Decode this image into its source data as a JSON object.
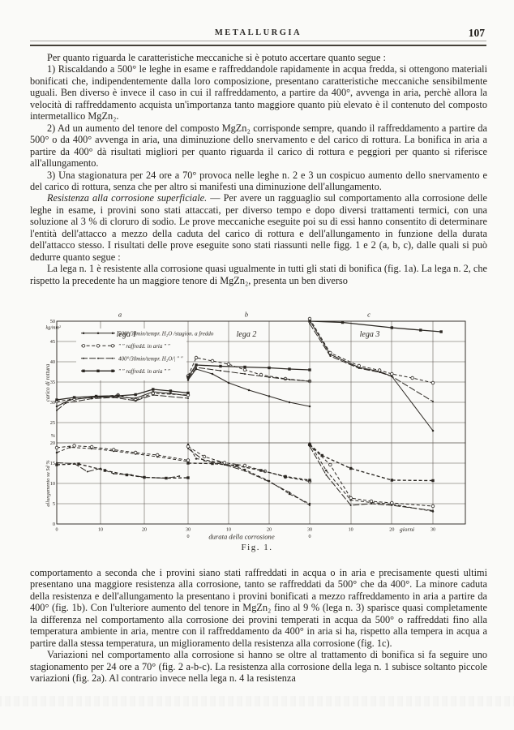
{
  "page": {
    "background": "#fafaf8",
    "ink": "#2b2722"
  },
  "header": {
    "journal": "METALLURGIA",
    "page_number": "107"
  },
  "paragraphs": {
    "p1": "Per quanto riguarda le caratteristiche meccaniche si è potuto accertare quanto segue :",
    "p2": "1) Riscaldando a 500° le leghe in esame e raffreddandole rapidamente in acqua fredda, si ottengono materiali bonificati che, indipendentemente dalla loro composizione, presentano caratteristiche meccaniche sensibilmente uguali. Ben diverso è invece il caso in cui il raffreddamento, a partire da 400°, avvenga in aria, perchè allora la velocità di raffreddamento acquista un'importanza tanto maggiore quanto più elevato è il contenuto del composto intermetallico MgZn₂.",
    "p3": "2) Ad un aumento del tenore del composto MgZn₂ corrisponde sempre, quando il raffreddamento a partire da 500° o da 400° avvenga in aria, una diminuzione dello snervamento e del carico di rottura. La bonifica in aria a partire da 400° dà risultati migliori per quanto riguarda il carico di rottura e peggiori per quanto si riferisce all'allungamento.",
    "p4": "3) Una stagionatura per 24 ore a 70° provoca nelle leghe n. 2 e 3 un cospicuo aumento dello snervamento e del carico di rottura, senza che per altro si manifesti una diminuzione dell'allungamento.",
    "p5_lead": "Resistenza alla corrosione superficiale.",
    "p5_rest": " — Per avere un ragguaglio sul comportamento alla corrosione delle leghe in esame, i provini sono stati attaccati, per diverso tempo e dopo diversi trattamenti termici, con una soluzione al 3 % di cloruro di sodio. Le prove meccaniche eseguite poi su di essi hanno consentito di determinare l'entità dell'attacco a mezzo della caduta del carico di rottura e dell'allungamento in funzione della durata dell'attacco stesso. I risultati delle prove eseguite sono stati riassunti nelle figg. 1 e 2 (a, b, c), dalle quali si può dedurre quanto segue :",
    "p6": "La lega n. 1 è resistente alla corrosione quasi ugualmente in tutti gli stati di bonifica (fig. 1a). La lega n. 2, che rispetto la precedente ha un maggiore tenore di MgZn₂, presenta un ben diverso",
    "p7": "comportamento a seconda che i provini siano stati raffreddati in acqua o in aria e precisamente questi ultimi presentano una maggiore resistenza alla corrosione, tanto se raffreddati da 500° che da 400°. La minore caduta della resistenza e dell'allungamento la presentano i provini bonificati a mezzo raffreddamento in aria a partire da 400° (fig. 1b). Con l'ulteriore aumento del tenore in MgZn₂ fino al 9 % (lega n. 3) sparisce quasi completamente la differenza nel comportamento alla corrosione dei provini temperati in acqua da 500° o raffreddati fino alla temperatura ambiente in aria, mentre con il raffreddamento da 400° in aria si ha, rispetto alla tempera in acqua a partire dalla stessa temperatura, un miglioramento della resistenza alla corrosione (fig. 1c).",
    "p8": "Variazioni nel comportamento alla corrosione si hanno se oltre al trattamento di bonifica si fa seguire uno stagionamento per 24 ore a 70° (fig. 2 a-b-c). La resistenza alla corrosione della lega n. 1 subisce soltanto piccole variazioni (fig. 2a). Al contrario invece nella lega n. 4 la resistenza"
  },
  "figure": {
    "caption": "Fig. 1.",
    "panel_letters": [
      "a",
      "b",
      "c"
    ],
    "chart_data": {
      "type": "line",
      "panels": [
        "lega 1",
        "lega 2",
        "lega 3"
      ],
      "x_axis": {
        "label": "durata della corrosione",
        "unit": "giorni",
        "ticks": [
          0,
          10,
          20,
          30
        ],
        "xlim": [
          0,
          30
        ]
      },
      "legend": [
        {
          "label": "500°/30min/tempr. H₂O /stagion. a freddo",
          "marker": "dot",
          "dash": ""
        },
        {
          "label": "″     ″    raffredd. in aria    ″    ″",
          "marker": "circle",
          "dash": "4,2.6"
        },
        {
          "label": "400°/30min/tempr. H₂O/|    ″    ″",
          "marker": "tick",
          "dash": "8,2.2"
        },
        {
          "label": "″     ″    raffredd. in aria    ″    ″",
          "marker": "square",
          "dash": ""
        }
      ],
      "charts": [
        {
          "name": "carico-di-rottura",
          "ylabel": "carico di rottura",
          "y_unit": "kg/mm²",
          "ylim": [
            20,
            50
          ],
          "yticks": [
            20,
            25,
            30,
            35,
            40,
            45,
            50
          ],
          "grid": true,
          "panels": [
            [
              [
                [
                  0,
                  29.0
                ],
                [
                  3,
                  30.6
                ],
                [
                  8,
                  31.2
                ],
                [
                  13,
                  31.4
                ],
                [
                  18,
                  31.0
                ],
                [
                  22,
                  32.6
                ],
                [
                  26,
                  32.2
                ],
                [
                  30,
                  31.6
                ]
              ],
              [
                [
                  0,
                  30.2
                ],
                [
                  4,
                  30.8
                ],
                [
                  9,
                  31.3
                ],
                [
                  14,
                  31.8
                ],
                [
                  18,
                  30.6
                ],
                [
                  22,
                  32.2
                ],
                [
                  30,
                  31.8
                ]
              ],
              [
                [
                  0,
                  28.0
                ],
                [
                  2,
                  29.8
                ],
                [
                  8,
                  30.9
                ],
                [
                  13,
                  31.2
                ],
                [
                  18,
                  30.4
                ],
                [
                  22,
                  31.8
                ],
                [
                  30,
                  31.0
                ]
              ],
              [
                [
                  0,
                  30.6
                ],
                [
                  4,
                  31.2
                ],
                [
                  9,
                  31.5
                ],
                [
                  14,
                  31.6
                ],
                [
                  18,
                  31.9
                ],
                [
                  22,
                  33.2
                ],
                [
                  26,
                  32.8
                ],
                [
                  30,
                  32.3
                ]
              ]
            ],
            [
              [
                [
                  0,
                  35.5
                ],
                [
                  2,
                  38.2
                ],
                [
                  6,
                  37.0
                ],
                [
                  10,
                  34.8
                ],
                [
                  15,
                  33.0
                ],
                [
                  20,
                  31.5
                ],
                [
                  25,
                  30.0
                ],
                [
                  30,
                  29.0
                ]
              ],
              [
                [
                  0,
                  36.5
                ],
                [
                  2,
                  41.0
                ],
                [
                  6,
                  40.2
                ],
                [
                  10,
                  39.4
                ],
                [
                  14,
                  38.0
                ],
                [
                  18,
                  36.8
                ],
                [
                  24,
                  35.8
                ],
                [
                  30,
                  35.2
                ]
              ],
              [
                [
                  0,
                  35.8
                ],
                [
                  2,
                  38.6
                ],
                [
                  8,
                  37.8
                ],
                [
                  14,
                  37.0
                ],
                [
                  20,
                  36.2
                ],
                [
                  25,
                  35.6
                ],
                [
                  30,
                  35.2
                ]
              ],
              [
                [
                  0,
                  36.2
                ],
                [
                  2,
                  39.2
                ],
                [
                  8,
                  38.9
                ],
                [
                  14,
                  38.7
                ],
                [
                  20,
                  38.5
                ],
                [
                  25,
                  38.2
                ],
                [
                  30,
                  38.0
                ]
              ]
            ],
            [
              [
                [
                  0,
                  50.2
                ],
                [
                  5,
                  41.8
                ],
                [
                  12,
                  38.6
                ],
                [
                  17,
                  37.6
                ],
                [
                  20,
                  36.4
                ],
                [
                  30,
                  23.0
                ]
              ],
              [
                [
                  0,
                  50.6
                ],
                [
                  5,
                  42.2
                ],
                [
                  12,
                  39.0
                ],
                [
                  17,
                  37.9
                ],
                [
                  20,
                  37.0
                ],
                [
                  25,
                  36.0
                ],
                [
                  30,
                  34.8
                ]
              ],
              [
                [
                  0,
                  49.4
                ],
                [
                  5,
                  41.4
                ],
                [
                  12,
                  38.4
                ],
                [
                  17,
                  37.4
                ],
                [
                  20,
                  36.4
                ],
                [
                  30,
                  30.2
                ]
              ],
              [
                [
                  0,
                  50.0
                ],
                [
                  8,
                  49.7
                ],
                [
                  20,
                  48.4
                ],
                [
                  27,
                  47.8
                ],
                [
                  32,
                  47.4
                ]
              ]
            ]
          ]
        },
        {
          "name": "allungamento",
          "ylabel": "allungamento su 5d %",
          "y_unit": "%",
          "ylim": [
            0,
            20
          ],
          "yticks": [
            0,
            5,
            10,
            15,
            20
          ],
          "grid": true,
          "panels": [
            [
              [
                [
                  0,
                  17.6
                ],
                [
                  3,
                  18.9
                ],
                [
                  8,
                  18.6
                ],
                [
                  13,
                  18.0
                ],
                [
                  18,
                  17.3
                ],
                [
                  23,
                  16.6
                ],
                [
                  30,
                  15.4
                ]
              ],
              [
                [
                  0,
                  18.8
                ],
                [
                  4,
                  19.3
                ],
                [
                  8,
                  19.0
                ],
                [
                  13,
                  18.3
                ],
                [
                  18,
                  17.6
                ],
                [
                  23,
                  17.0
                ],
                [
                  30,
                  15.7
                ]
              ],
              [
                [
                  0,
                  15.1
                ],
                [
                  4,
                  14.9
                ],
                [
                  7,
                  12.9
                ],
                [
                  10,
                  13.7
                ],
                [
                  13,
                  12.4
                ],
                [
                  17,
                  12.1
                ],
                [
                  20,
                  11.5
                ],
                [
                  25,
                  11.3
                ],
                [
                  28,
                  11.8
                ]
              ],
              [
                [
                  0,
                  14.6
                ],
                [
                  5,
                  14.8
                ],
                [
                  11,
                  13.2
                ],
                [
                  16,
                  12.1
                ],
                [
                  20,
                  11.5
                ],
                [
                  25,
                  11.3
                ],
                [
                  30,
                  11.4
                ]
              ]
            ],
            [
              [
                [
                  0,
                  19.6
                ],
                [
                  2,
                  16.1
                ],
                [
                  8,
                  15.2
                ],
                [
                  14,
                  13.4
                ],
                [
                  20,
                  10.6
                ],
                [
                  25,
                  7.4
                ],
                [
                  30,
                  5.0
                ]
              ],
              [
                [
                  0,
                  19.1
                ],
                [
                  4,
                  16.6
                ],
                [
                  9,
                  15.1
                ],
                [
                  14,
                  14.4
                ],
                [
                  19,
                  13.0
                ],
                [
                  24,
                  11.6
                ],
                [
                  30,
                  10.5
                ]
              ],
              [
                [
                  0,
                  18.6
                ],
                [
                  4,
                  15.6
                ],
                [
                  9,
                  14.6
                ],
                [
                  14,
                  13.1
                ],
                [
                  19,
                  10.9
                ],
                [
                  25,
                  7.8
                ],
                [
                  30,
                  4.6
                ]
              ],
              [
                [
                  0,
                  15.0
                ],
                [
                  6,
                  14.9
                ],
                [
                  12,
                  14.4
                ],
                [
                  18,
                  13.2
                ],
                [
                  24,
                  11.7
                ],
                [
                  30,
                  10.8
                ]
              ]
            ],
            [
              [
                [
                  0,
                  19.9
                ],
                [
                  4,
                  13.2
                ],
                [
                  10,
                  5.9
                ],
                [
                  15,
                  5.3
                ],
                [
                  20,
                  4.9
                ],
                [
                  30,
                  3.1
                ]
              ],
              [
                [
                  0,
                  19.5
                ],
                [
                  5,
                  14.6
                ],
                [
                  10,
                  6.4
                ],
                [
                  15,
                  5.6
                ],
                [
                  20,
                  5.2
                ],
                [
                  30,
                  4.4
                ]
              ],
              [
                [
                  0,
                  19.2
                ],
                [
                  4,
                  12.1
                ],
                [
                  10,
                  4.6
                ],
                [
                  15,
                  5.0
                ],
                [
                  20,
                  4.6
                ],
                [
                  30,
                  3.3
                ]
              ],
              [
                [
                  0,
                  19.6
                ],
                [
                  3,
                  16.9
                ],
                [
                  10,
                  13.7
                ],
                [
                  20,
                  10.8
                ],
                [
                  30,
                  10.7
                ]
              ]
            ]
          ]
        }
      ]
    }
  }
}
